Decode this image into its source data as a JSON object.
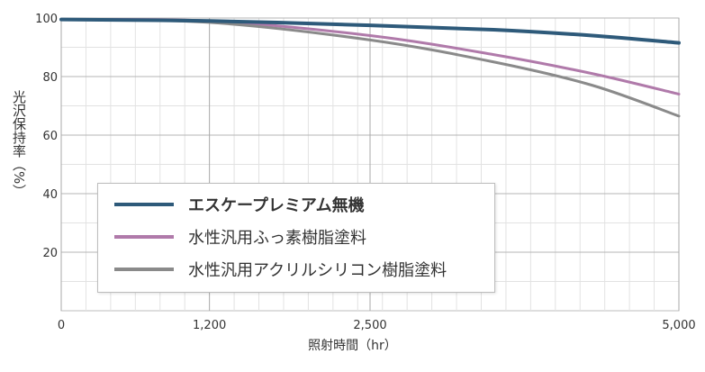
{
  "chart_data": {
    "type": "line",
    "title": "",
    "xlabel": "照射時間（hr）",
    "ylabel": "光沢保持率（%）",
    "xlim": [
      0,
      5000
    ],
    "ylim": [
      0,
      100
    ],
    "x_ticks": [
      0,
      1200,
      2500,
      5000
    ],
    "x_tick_labels": [
      "0",
      "1,200",
      "2,500",
      "5,000"
    ],
    "y_ticks": [
      20,
      40,
      60,
      80,
      100
    ],
    "y_tick_labels": [
      "20",
      "40",
      "60",
      "80",
      "100"
    ],
    "grid": true,
    "legend_position": "lower-left",
    "series": [
      {
        "name": "エスケープレミアム無機",
        "color": "#2e5a7a",
        "emphasis": true,
        "x": [
          0,
          1200,
          2500,
          3500,
          4300,
          5000
        ],
        "y": [
          99.5,
          99,
          97.5,
          96,
          94,
          91.5
        ]
      },
      {
        "name": "水性汎用ふっ素樹脂塗料",
        "color": "#b07aaa",
        "emphasis": false,
        "x": [
          0,
          1200,
          2500,
          3500,
          4300,
          5000
        ],
        "y": [
          99.5,
          99,
          94,
          87.5,
          81,
          74
        ]
      },
      {
        "name": "水性汎用アクリルシリコン樹脂塗料",
        "color": "#8a8a8a",
        "emphasis": false,
        "x": [
          0,
          1200,
          2500,
          3500,
          4300,
          5000
        ],
        "y": [
          99.5,
          98.5,
          92.5,
          85,
          77,
          66.5
        ]
      }
    ]
  }
}
